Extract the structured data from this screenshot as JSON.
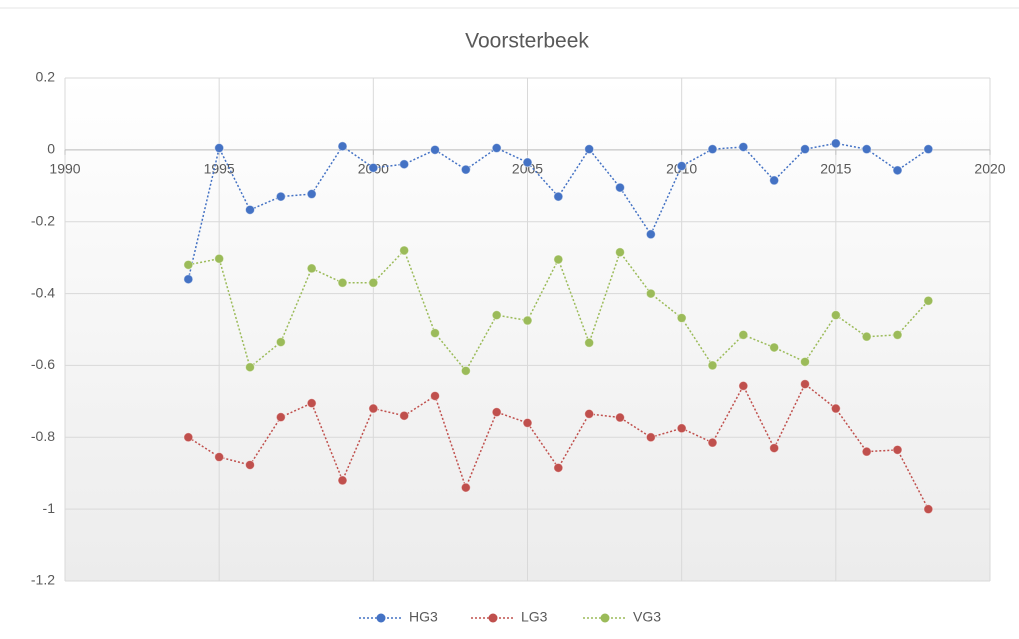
{
  "chart_data": {
    "type": "scatter",
    "title": "Voorsterbeek",
    "x": [
      1994,
      1995,
      1996,
      1997,
      1998,
      1999,
      2000,
      2001,
      2002,
      2003,
      2004,
      2005,
      2006,
      2007,
      2008,
      2009,
      2010,
      2011,
      2012,
      2013,
      2014,
      2015,
      2016,
      2017,
      2018
    ],
    "series": [
      {
        "name": "HG3",
        "color": "#4472c4",
        "values": [
          -0.36,
          0.005,
          -0.167,
          -0.13,
          -0.123,
          0.01,
          -0.05,
          -0.04,
          0,
          -0.055,
          0.005,
          -0.035,
          -0.13,
          0.002,
          -0.105,
          -0.235,
          -0.045,
          0.002,
          0.008,
          -0.085,
          0.002,
          0.018,
          0.002,
          -0.057,
          0.002
        ]
      },
      {
        "name": "LG3",
        "color": "#c0504d",
        "values": [
          -0.8,
          -0.855,
          -0.877,
          -0.744,
          -0.705,
          -0.92,
          -0.72,
          -0.74,
          -0.685,
          -0.94,
          -0.73,
          -0.76,
          -0.885,
          -0.735,
          -0.745,
          -0.8,
          -0.775,
          -0.815,
          -0.657,
          -0.83,
          -0.652,
          -0.72,
          -0.84,
          -0.835,
          -1.0
        ]
      },
      {
        "name": "VG3",
        "color": "#9bbb59",
        "values": [
          -0.32,
          -0.303,
          -0.605,
          -0.535,
          -0.33,
          -0.37,
          -0.37,
          -0.28,
          -0.51,
          -0.615,
          -0.46,
          -0.475,
          -0.305,
          -0.537,
          -0.285,
          -0.4,
          -0.468,
          -0.6,
          -0.515,
          -0.55,
          -0.59,
          -0.46,
          -0.52,
          -0.515,
          -0.42
        ]
      }
    ],
    "xlim": [
      1990,
      2020
    ],
    "xticks": [
      1990,
      1995,
      2000,
      2005,
      2010,
      2015,
      2020
    ],
    "ylim": [
      -1.2,
      0.2
    ],
    "yticks": [
      0.2,
      0,
      -0.2,
      -0.4,
      -0.6,
      -0.8,
      -1,
      -1.2
    ],
    "grid": true,
    "legend": "bottom"
  }
}
